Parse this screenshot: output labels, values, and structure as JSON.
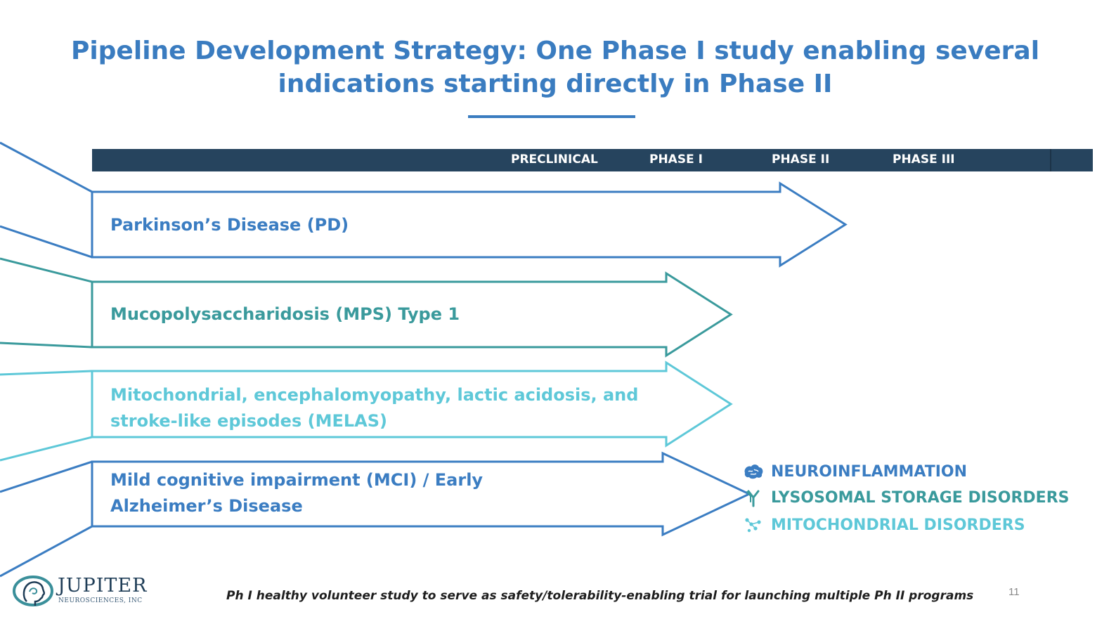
{
  "title": {
    "line1": "Pipeline Development Strategy: One Phase I study enabling several",
    "line2": "indications starting directly in Phase II"
  },
  "phase_header": [
    "PRECLINICAL",
    "PHASE I",
    "PHASE II",
    "PHASE III"
  ],
  "indications": [
    {
      "lines": [
        "Parkinson’s Disease (PD)"
      ],
      "reaches_phase": "PHASE II",
      "color": "#3b7dc2",
      "category": "neuroinflammation"
    },
    {
      "lines": [
        "Mucopolysaccharidosis (MPS) Type 1"
      ],
      "reaches_phase": "PHASE I",
      "color": "#3a9a9c",
      "category": "lysosomal"
    },
    {
      "lines": [
        "Mitochondrial, encephalomyopathy, lactic acidosis, and",
        "stroke-like episodes (MELAS)"
      ],
      "reaches_phase": "PHASE I",
      "color": "#5ec8d8",
      "category": "mitochondrial"
    },
    {
      "lines": [
        "Mild cognitive impairment (MCI) / Early",
        "Alzheimer’s Disease"
      ],
      "reaches_phase": "PHASE I",
      "color": "#3b7dc2",
      "category": "neuroinflammation"
    }
  ],
  "legend": [
    {
      "label": "NEUROINFLAMMATION",
      "icon": "brain-icon",
      "color": "#3b7dc2"
    },
    {
      "label": "LYSOSOMAL STORAGE DISORDERS",
      "icon": "antibody-icon",
      "color": "#3a9a9c"
    },
    {
      "label": "MITOCHONDRIAL DISORDERS",
      "icon": "molecule-icon",
      "color": "#5ec8d8"
    }
  ],
  "footnote": "Ph I healthy volunteer study to serve as safety/tolerability-enabling trial for launching multiple Ph II programs",
  "page_number": "11",
  "logo": {
    "name": "JUPITER",
    "subtitle": "NEUROSCIENCES, INC"
  },
  "colors": {
    "title": "#3a7cc0",
    "header_bar": "#26445e"
  }
}
